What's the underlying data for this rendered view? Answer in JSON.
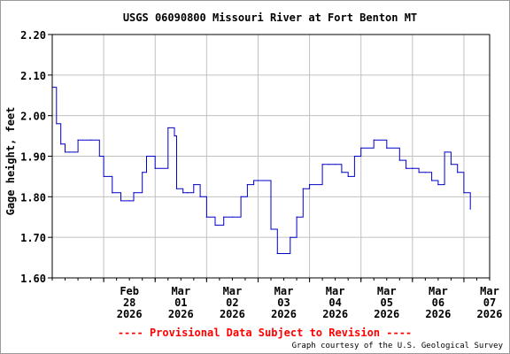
{
  "chart_data": {
    "type": "line",
    "title": "USGS 06090800 Missouri River at Fort Benton MT",
    "ylabel": "Gage height, feet",
    "xlabel": "",
    "ylim": [
      1.6,
      2.2
    ],
    "yticks": [
      "1.60",
      "1.70",
      "1.80",
      "1.90",
      "2.00",
      "2.10",
      "2.20"
    ],
    "x_days": [
      {
        "m": "Feb",
        "d": "28",
        "y": "2026"
      },
      {
        "m": "Mar",
        "d": "01",
        "y": "2026"
      },
      {
        "m": "Mar",
        "d": "02",
        "y": "2026"
      },
      {
        "m": "Mar",
        "d": "03",
        "y": "2026"
      },
      {
        "m": "Mar",
        "d": "04",
        "y": "2026"
      },
      {
        "m": "Mar",
        "d": "05",
        "y": "2026"
      },
      {
        "m": "Mar",
        "d": "06",
        "y": "2026"
      },
      {
        "m": "Mar",
        "d": "07",
        "y": "2026"
      }
    ],
    "x_range": [
      "2026-02-27 00:00",
      "2026-03-07 12:00"
    ],
    "grid": true,
    "series_color": "#0000c8",
    "series": [
      {
        "x": [
          "2026-02-27 00:00",
          "2026-02-27 02:00",
          "2026-02-27 04:00",
          "2026-02-27 06:00",
          "2026-02-27 08:00",
          "2026-02-27 12:00",
          "2026-02-27 18:00",
          "2026-02-27 22:00",
          "2026-02-28 00:00",
          "2026-02-28 04:00",
          "2026-02-28 08:00",
          "2026-02-28 12:00",
          "2026-02-28 14:00",
          "2026-02-28 18:00",
          "2026-02-28 20:00",
          "2026-02-29 00:00",
          "2026-03-01 06:00",
          "2026-03-01 09:00",
          "2026-03-01 10:00",
          "2026-03-01 13:00",
          "2026-03-01 15:00",
          "2026-03-01 18:00",
          "2026-03-01 21:00",
          "2026-03-02 00:00",
          "2026-03-02 04:00",
          "2026-03-02 08:00",
          "2026-03-02 12:00",
          "2026-03-02 16:00",
          "2026-03-02 19:00",
          "2026-03-02 22:00",
          "2026-03-03 00:00",
          "2026-03-03 06:00",
          "2026-03-03 09:00",
          "2026-03-03 12:00",
          "2026-03-03 15:00",
          "2026-03-03 18:00",
          "2026-03-03 21:00",
          "2026-03-04 00:00",
          "2026-03-04 06:00",
          "2026-03-04 09:00",
          "2026-03-04 12:00",
          "2026-03-04 15:00",
          "2026-03-04 18:00",
          "2026-03-04 21:00",
          "2026-03-05 00:00",
          "2026-03-05 06:00",
          "2026-03-05 12:00",
          "2026-03-05 18:00",
          "2026-03-05 21:00",
          "2026-03-06 00:00",
          "2026-03-06 03:00",
          "2026-03-06 06:00",
          "2026-03-06 09:00",
          "2026-03-06 12:00",
          "2026-03-06 15:00",
          "2026-03-06 18:00",
          "2026-03-06 21:00",
          "2026-03-07 00:00",
          "2026-03-07 03:00"
        ],
        "y": [
          2.07,
          1.98,
          1.93,
          1.91,
          1.91,
          1.94,
          1.94,
          1.9,
          1.85,
          1.81,
          1.79,
          1.79,
          1.81,
          1.86,
          1.9,
          1.87,
          1.97,
          1.95,
          1.82,
          1.81,
          1.81,
          1.83,
          1.8,
          1.75,
          1.73,
          1.75,
          1.75,
          1.8,
          1.83,
          1.84,
          1.84,
          1.72,
          1.66,
          1.66,
          1.7,
          1.75,
          1.82,
          1.83,
          1.88,
          1.88,
          1.88,
          1.86,
          1.85,
          1.9,
          1.92,
          1.94,
          1.92,
          1.89,
          1.87,
          1.87,
          1.86,
          1.86,
          1.84,
          1.83,
          1.91,
          1.88,
          1.86,
          1.81,
          1.77
        ]
      }
    ]
  },
  "footer": {
    "provisional": "---- Provisional Data Subject to Revision ----",
    "credit": "Graph courtesy of the U.S. Geological Survey"
  },
  "colors": {
    "grid": "#c0c0c0",
    "axis": "#000000",
    "line": "#0000c8",
    "provisional": "#ff0000"
  }
}
